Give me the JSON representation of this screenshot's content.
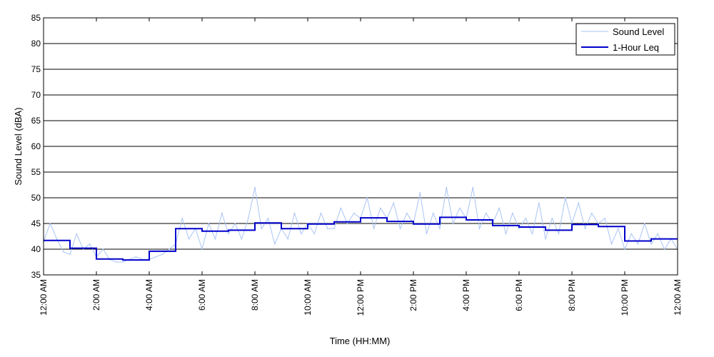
{
  "chart_data": {
    "type": "line",
    "xlabel": "Time (HH:MM)",
    "ylabel": "Sound Level (dBA)",
    "ylim": [
      35,
      85
    ],
    "yticks": [
      35,
      40,
      45,
      50,
      55,
      60,
      65,
      70,
      75,
      80,
      85
    ],
    "xlim_hours": [
      0,
      24
    ],
    "xtick_hours": [
      0,
      2,
      4,
      6,
      8,
      10,
      12,
      14,
      16,
      18,
      20,
      22,
      24
    ],
    "xtick_labels": [
      "12:00 AM",
      "2:00 AM",
      "4:00 AM",
      "6:00 AM",
      "8:00 AM",
      "10:00 AM",
      "12:00 PM",
      "2:00 PM",
      "4:00 PM",
      "6:00 PM",
      "8:00 PM",
      "10:00 PM",
      "12:00 AM"
    ],
    "grid": "horizontal",
    "legend_position": "top-right",
    "colors": {
      "sound_level": "#a9c4f5",
      "leq": "#0000cc"
    },
    "series": [
      {
        "name": "Sound Level",
        "x_hours": [
          0,
          0.25,
          0.5,
          0.75,
          1,
          1.25,
          1.5,
          1.75,
          2,
          2.25,
          2.5,
          2.75,
          3,
          3.25,
          3.5,
          3.75,
          4,
          4.25,
          4.5,
          4.75,
          5,
          5.25,
          5.5,
          5.75,
          6,
          6.25,
          6.5,
          6.75,
          7,
          7.25,
          7.5,
          7.75,
          8,
          8.25,
          8.5,
          8.75,
          9,
          9.25,
          9.5,
          9.75,
          10,
          10.25,
          10.5,
          10.75,
          11,
          11.25,
          11.5,
          11.75,
          12,
          12.25,
          12.5,
          12.75,
          13,
          13.25,
          13.5,
          13.75,
          14,
          14.25,
          14.5,
          14.75,
          15,
          15.25,
          15.5,
          15.75,
          16,
          16.25,
          16.5,
          16.75,
          17,
          17.25,
          17.5,
          17.75,
          18,
          18.25,
          18.5,
          18.75,
          19,
          19.25,
          19.5,
          19.75,
          20,
          20.25,
          20.5,
          20.75,
          21,
          21.25,
          21.5,
          21.75,
          22,
          22.25,
          22.5,
          22.75,
          23,
          23.25,
          23.5,
          23.75,
          24
        ],
        "values": [
          41.5,
          45,
          42,
          39.5,
          39,
          43,
          40,
          41,
          38.5,
          40,
          38,
          37.5,
          37.5,
          38,
          38.5,
          38,
          38,
          38.5,
          39,
          40,
          41,
          46,
          42,
          44,
          40,
          45,
          42,
          47,
          43,
          45,
          42,
          46,
          52,
          44,
          46,
          41,
          44,
          42,
          47,
          43,
          45,
          43,
          47,
          44,
          44,
          48,
          45,
          47,
          46,
          50,
          44,
          48,
          46,
          49,
          44,
          47,
          45,
          51,
          43,
          47,
          44,
          52,
          45,
          48,
          46,
          52,
          44,
          47,
          45,
          48,
          43,
          47,
          44,
          46,
          43,
          49,
          42,
          46,
          43,
          50,
          45,
          49,
          44,
          47,
          45,
          46,
          41,
          44,
          40,
          43,
          41,
          45,
          41,
          43,
          40,
          42,
          40
        ]
      },
      {
        "name": "1-Hour Leq",
        "step_values": [
          41.7,
          40.2,
          38.1,
          37.9,
          39.6,
          44.0,
          43.5,
          43.7,
          45.1,
          44.0,
          44.9,
          45.3,
          46.1,
          45.4,
          44.9,
          46.2,
          45.7,
          44.6,
          44.3,
          43.7,
          44.8,
          44.4,
          41.6,
          42.0
        ]
      }
    ]
  }
}
